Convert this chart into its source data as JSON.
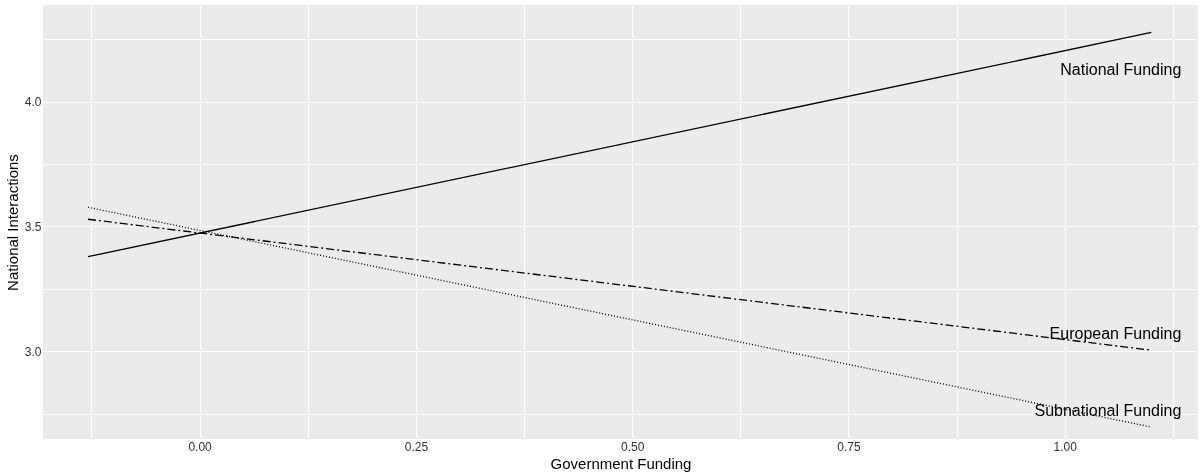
{
  "chart_data": {
    "type": "line",
    "xlabel": "Government Funding",
    "ylabel": "National Interactions",
    "xlim": [
      -0.181,
      1.154
    ],
    "ylim": [
      2.648,
      4.388
    ],
    "xticks": [
      {
        "value": -0.125,
        "label": null
      },
      {
        "value": 0,
        "label": "0.00"
      },
      {
        "value": 0.125,
        "label": null
      },
      {
        "value": 0.25,
        "label": "0.25"
      },
      {
        "value": 0.375,
        "label": null
      },
      {
        "value": 0.5,
        "label": "0.50"
      },
      {
        "value": 0.625,
        "label": null
      },
      {
        "value": 0.75,
        "label": "0.75"
      },
      {
        "value": 0.875,
        "label": null
      },
      {
        "value": 1,
        "label": "1.00"
      },
      {
        "value": 1.125,
        "label": null
      }
    ],
    "yticks": [
      {
        "value": 2.75,
        "label": null
      },
      {
        "value": 3,
        "label": "3.0"
      },
      {
        "value": 3.25,
        "label": null
      },
      {
        "value": 3.5,
        "label": "3.5"
      },
      {
        "value": 3.75,
        "label": null
      },
      {
        "value": 4,
        "label": "4.0"
      },
      {
        "value": 4.25,
        "label": null
      }
    ],
    "grid": true,
    "marker": "none",
    "x": [
      -0.129,
      1.1
    ],
    "series": [
      {
        "name": "National Funding",
        "color": "#000000",
        "line_style": "solid",
        "values": [
          3.379,
          4.278
        ]
      },
      {
        "name": "European Funding",
        "color": "#000000",
        "line_style": "dashed",
        "values": [
          3.529,
          3.004
        ]
      },
      {
        "name": "Subnational Funding",
        "color": "#000000",
        "line_style": "dotted",
        "values": [
          3.577,
          2.696
        ]
      }
    ]
  }
}
